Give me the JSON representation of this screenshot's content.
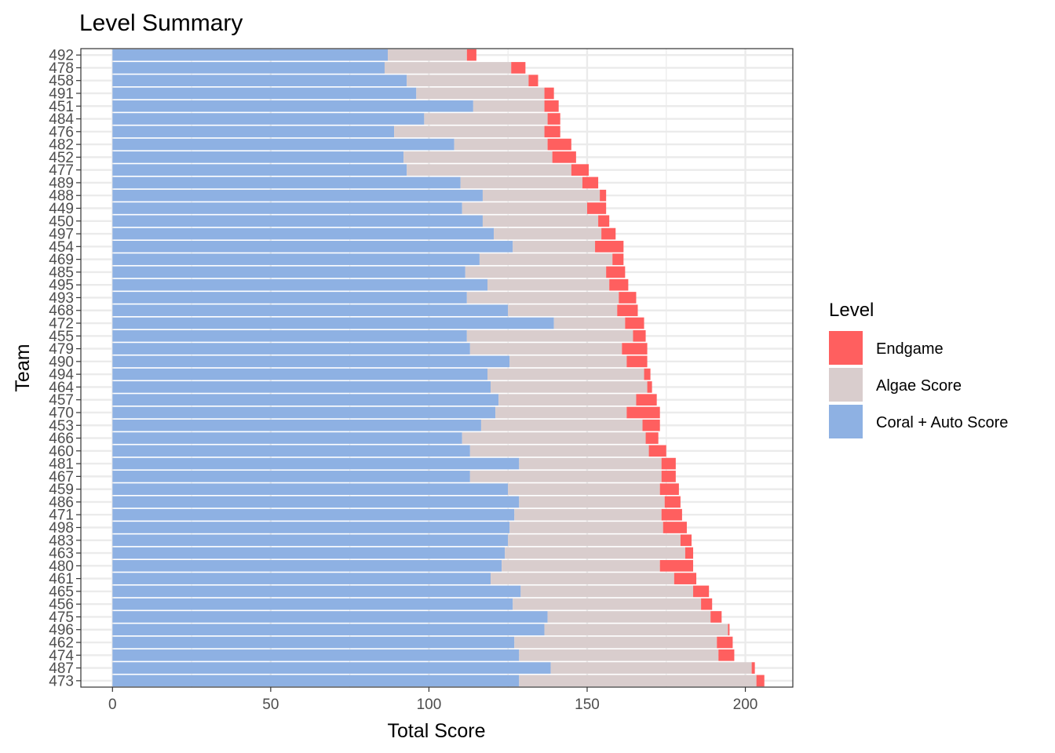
{
  "chart_data": {
    "type": "bar",
    "orientation": "horizontal",
    "stacked": true,
    "title": "Level Summary",
    "xlabel": "Total Score",
    "ylabel": "Team",
    "xlim": [
      -10,
      215
    ],
    "xticks": [
      0,
      50,
      100,
      150,
      200
    ],
    "grid": true,
    "legend": {
      "title": "Level",
      "position": "right",
      "entries": [
        {
          "name": "Endgame",
          "color": "#FF5F5F"
        },
        {
          "name": "Algae Score",
          "color": "#D9CDCD"
        },
        {
          "name": "Coral + Auto Score",
          "color": "#8EB1E3"
        }
      ]
    },
    "categories": [
      "492",
      "478",
      "458",
      "491",
      "451",
      "484",
      "476",
      "482",
      "452",
      "477",
      "489",
      "488",
      "449",
      "450",
      "497",
      "454",
      "469",
      "485",
      "495",
      "493",
      "468",
      "472",
      "455",
      "479",
      "490",
      "494",
      "464",
      "457",
      "470",
      "453",
      "466",
      "460",
      "481",
      "467",
      "459",
      "486",
      "471",
      "498",
      "483",
      "463",
      "480",
      "461",
      "465",
      "456",
      "475",
      "496",
      "462",
      "474",
      "487",
      "473"
    ],
    "series": [
      {
        "name": "Coral + Auto Score",
        "color": "#8EB1E3",
        "values": [
          87,
          86,
          93,
          96,
          114,
          98.5,
          89,
          108,
          92,
          93,
          110,
          117,
          110.5,
          117,
          120.5,
          126.5,
          116,
          111.5,
          118.5,
          112,
          125,
          139.5,
          112,
          113,
          125.5,
          118.5,
          119.5,
          122,
          121,
          116.5,
          110.5,
          113,
          128.5,
          113,
          125,
          128.5,
          127,
          125.5,
          125,
          124,
          123,
          119.5,
          129,
          126.5,
          137.5,
          136.5,
          127,
          128.5,
          138.5,
          128.5
        ]
      },
      {
        "name": "Algae Score",
        "color": "#D9CDCD",
        "values": [
          25,
          40,
          38.5,
          40.5,
          22.5,
          39,
          47.5,
          29.5,
          47,
          52,
          38.5,
          37,
          39.5,
          36.5,
          34,
          26,
          42,
          44.5,
          38.5,
          48,
          34.5,
          22.5,
          52.5,
          48,
          37,
          49.5,
          49.5,
          43.5,
          41.5,
          51,
          58,
          56.5,
          45,
          60.5,
          48,
          46,
          46.5,
          48.5,
          54.5,
          57,
          50,
          58,
          54.5,
          59.5,
          51.5,
          58,
          64,
          63,
          63.5,
          75
        ]
      },
      {
        "name": "Endgame",
        "color": "#FF5F5F",
        "values": [
          3,
          4.5,
          3,
          3,
          4.5,
          4,
          5,
          7.5,
          7.5,
          5.5,
          5,
          2,
          6,
          3.5,
          4.5,
          9,
          3.5,
          6,
          6,
          5.5,
          6.5,
          6,
          4,
          8,
          6.5,
          2,
          1.5,
          6.5,
          10.5,
          5.5,
          4,
          5.5,
          4.5,
          4.5,
          6,
          5,
          6.5,
          7.5,
          3.5,
          2.5,
          10.5,
          7,
          5,
          3.5,
          3.5,
          0.5,
          5,
          5,
          1,
          2.5
        ]
      }
    ]
  }
}
